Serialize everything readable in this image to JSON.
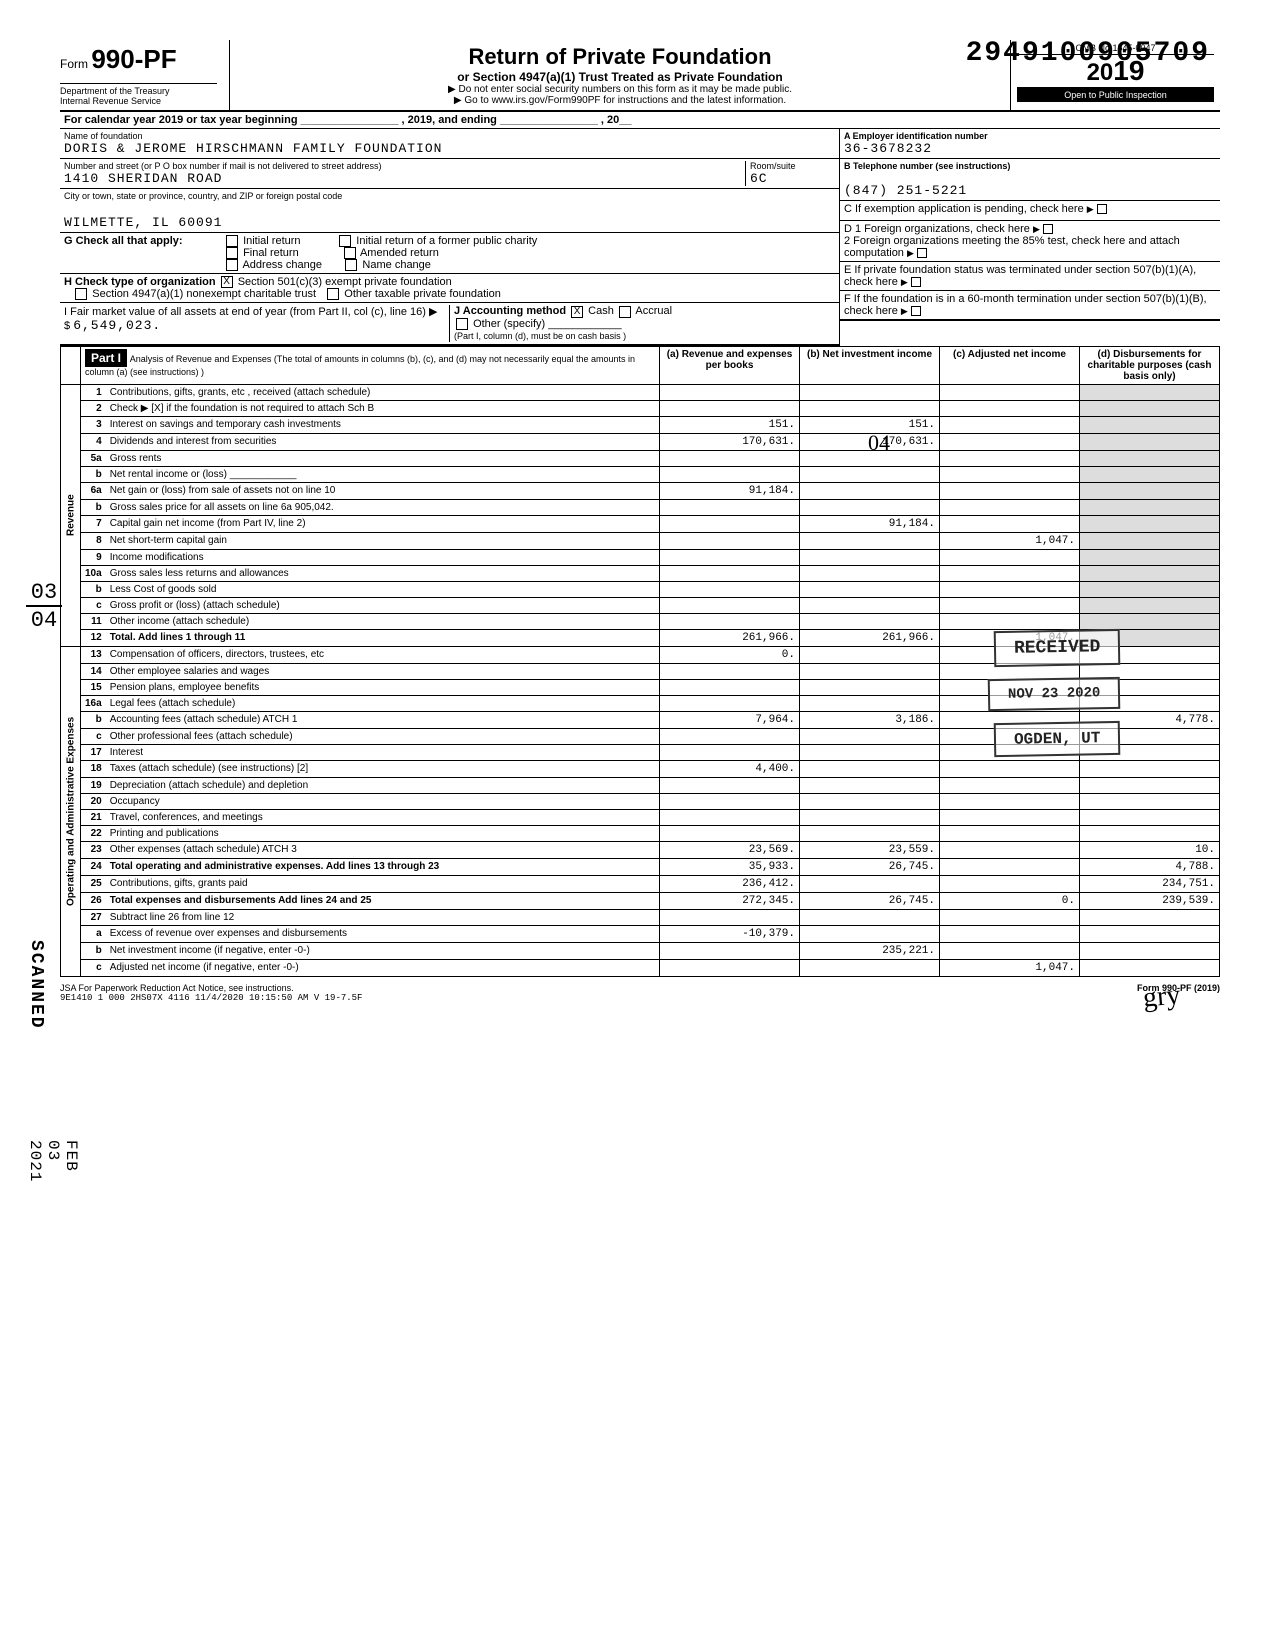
{
  "topnumber": "2949100905709",
  "form": {
    "form_label": "Form",
    "form_no": "990-PF",
    "dept1": "Department of the Treasury",
    "dept2": "Internal Revenue Service"
  },
  "title": {
    "main": "Return of Private Foundation",
    "sub": "or Section 4947(a)(1) Trust Treated as Private Foundation",
    "line1": "▶ Do not enter social security numbers on this form as it may be made public.",
    "line2": "▶ Go to www.irs.gov/Form990PF for instructions and the latest information."
  },
  "yearbox": {
    "omb": "OMB No 1545-0047",
    "year_prefix": "20",
    "year_bold": "19",
    "open": "Open to Public Inspection"
  },
  "calrow": "For calendar year 2019 or tax year beginning ________________ , 2019, and ending ________________ , 20__",
  "foundation": {
    "name_label": "Name of foundation",
    "name": "DORIS & JEROME HIRSCHMANN FAMILY FOUNDATION",
    "addr_label": "Number and street (or P O  box number if mail is not delivered to street address)",
    "addr": "1410 SHERIDAN ROAD",
    "room_label": "Room/suite",
    "room": "6C",
    "city_label": "City or town, state or province, country, and ZIP or foreign postal code",
    "city": "WILMETTE, IL 60091"
  },
  "boxA": {
    "label": "A  Employer identification number",
    "val": "36-3678232"
  },
  "boxB": {
    "label": "B  Telephone number (see instructions)",
    "val": "(847) 251-5221"
  },
  "boxC": "C  If exemption application is pending, check here",
  "boxD1": "D 1 Foreign organizations, check here",
  "boxD2": "2 Foreign organizations meeting the 85% test, check here and attach computation",
  "boxE": "E  If private foundation status was terminated under section 507(b)(1)(A), check here",
  "boxF": "F  If the foundation is in a 60-month termination under section 507(b)(1)(B), check here",
  "G": {
    "label": "G Check all that apply:",
    "opts": [
      "Initial return",
      "Final return",
      "Address change",
      "Initial return of a former public charity",
      "Amended return",
      "Name change"
    ]
  },
  "H": {
    "label": "H Check type of organization",
    "o1": "Section 501(c)(3) exempt private foundation",
    "o2": "Section 4947(a)(1) nonexempt charitable trust",
    "o3": "Other taxable private foundation"
  },
  "I": {
    "label": "I  Fair market value of all assets at end of year (from Part II, col (c), line 16) ▶ $",
    "val": "6,549,023."
  },
  "J": {
    "label": "J Accounting method",
    "cash": "Cash",
    "accrual": "Accrual",
    "other": "Other (specify)",
    "note": "(Part I, column (d), must be on cash basis )"
  },
  "part1": {
    "hdr": "Part I",
    "title": "Analysis of Revenue and Expenses (The total of amounts in columns (b), (c), and (d) may not necessarily equal the amounts in column (a) (see instructions) )",
    "cols": [
      "(a) Revenue and expenses per books",
      "(b) Net investment income",
      "(c) Adjusted net income",
      "(d) Disbursements for charitable purposes (cash basis only)"
    ]
  },
  "side": {
    "rev": "Revenue",
    "opadm": "Operating and Administrative Expenses"
  },
  "rows": [
    {
      "n": "1",
      "d": "Contributions, gifts, grants, etc , received (attach schedule)",
      "a": "",
      "b": "",
      "c": "",
      "x": ""
    },
    {
      "n": "2",
      "d": "Check ▶ [X] if the foundation is not required to attach Sch B",
      "a": "",
      "b": "",
      "c": "",
      "x": ""
    },
    {
      "n": "3",
      "d": "Interest on savings and temporary cash investments",
      "a": "151.",
      "b": "151.",
      "c": "",
      "x": ""
    },
    {
      "n": "4",
      "d": "Dividends and interest from securities",
      "a": "170,631.",
      "b": "170,631.",
      "c": "",
      "x": ""
    },
    {
      "n": "5a",
      "d": "Gross rents",
      "a": "",
      "b": "",
      "c": "",
      "x": ""
    },
    {
      "n": "b",
      "d": "Net rental income or (loss) ____________",
      "a": "",
      "b": "",
      "c": "",
      "x": ""
    },
    {
      "n": "6a",
      "d": "Net gain or (loss) from sale of assets not on line 10",
      "a": "91,184.",
      "b": "",
      "c": "",
      "x": ""
    },
    {
      "n": "b",
      "d": "Gross sales price for all assets on line 6a    905,042.",
      "a": "",
      "b": "",
      "c": "",
      "x": ""
    },
    {
      "n": "7",
      "d": "Capital gain net income (from Part IV, line 2)",
      "a": "",
      "b": "91,184.",
      "c": "",
      "x": ""
    },
    {
      "n": "8",
      "d": "Net short-term capital gain",
      "a": "",
      "b": "",
      "c": "1,047.",
      "x": ""
    },
    {
      "n": "9",
      "d": "Income modifications",
      "a": "",
      "b": "",
      "c": "",
      "x": ""
    },
    {
      "n": "10a",
      "d": "Gross sales less returns and allowances",
      "a": "",
      "b": "",
      "c": "",
      "x": ""
    },
    {
      "n": "b",
      "d": "Less Cost of goods sold",
      "a": "",
      "b": "",
      "c": "",
      "x": ""
    },
    {
      "n": "c",
      "d": "Gross profit or (loss) (attach schedule)",
      "a": "",
      "b": "",
      "c": "",
      "x": ""
    },
    {
      "n": "11",
      "d": "Other income (attach schedule)",
      "a": "",
      "b": "",
      "c": "",
      "x": ""
    },
    {
      "n": "12",
      "d": "Total. Add lines 1 through 11",
      "a": "261,966.",
      "b": "261,966.",
      "c": "1,047.",
      "x": ""
    },
    {
      "n": "13",
      "d": "Compensation of officers, directors, trustees, etc",
      "a": "0.",
      "b": "",
      "c": "",
      "x": ""
    },
    {
      "n": "14",
      "d": "Other employee salaries and wages",
      "a": "",
      "b": "",
      "c": "",
      "x": ""
    },
    {
      "n": "15",
      "d": "Pension plans, employee benefits",
      "a": "",
      "b": "",
      "c": "",
      "x": ""
    },
    {
      "n": "16a",
      "d": "Legal fees (attach schedule)",
      "a": "",
      "b": "",
      "c": "",
      "x": ""
    },
    {
      "n": "b",
      "d": "Accounting fees (attach schedule) ATCH 1",
      "a": "7,964.",
      "b": "3,186.",
      "c": "",
      "x": "4,778."
    },
    {
      "n": "c",
      "d": "Other professional fees (attach schedule)",
      "a": "",
      "b": "",
      "c": "",
      "x": ""
    },
    {
      "n": "17",
      "d": "Interest",
      "a": "",
      "b": "",
      "c": "",
      "x": ""
    },
    {
      "n": "18",
      "d": "Taxes (attach schedule) (see instructions) [2]",
      "a": "4,400.",
      "b": "",
      "c": "",
      "x": ""
    },
    {
      "n": "19",
      "d": "Depreciation (attach schedule) and depletion",
      "a": "",
      "b": "",
      "c": "",
      "x": ""
    },
    {
      "n": "20",
      "d": "Occupancy",
      "a": "",
      "b": "",
      "c": "",
      "x": ""
    },
    {
      "n": "21",
      "d": "Travel, conferences, and meetings",
      "a": "",
      "b": "",
      "c": "",
      "x": ""
    },
    {
      "n": "22",
      "d": "Printing and publications",
      "a": "",
      "b": "",
      "c": "",
      "x": ""
    },
    {
      "n": "23",
      "d": "Other expenses (attach schedule) ATCH 3",
      "a": "23,569.",
      "b": "23,559.",
      "c": "",
      "x": "10."
    },
    {
      "n": "24",
      "d": "Total operating and administrative expenses. Add lines 13 through 23",
      "a": "35,933.",
      "b": "26,745.",
      "c": "",
      "x": "4,788."
    },
    {
      "n": "25",
      "d": "Contributions, gifts, grants paid",
      "a": "236,412.",
      "b": "",
      "c": "",
      "x": "234,751."
    },
    {
      "n": "26",
      "d": "Total expenses and disbursements Add lines 24 and 25",
      "a": "272,345.",
      "b": "26,745.",
      "c": "0.",
      "x": "239,539."
    },
    {
      "n": "27",
      "d": "Subtract line 26 from line 12",
      "a": "",
      "b": "",
      "c": "",
      "x": ""
    },
    {
      "n": "a",
      "d": "Excess of revenue over expenses and disbursements",
      "a": "-10,379.",
      "b": "",
      "c": "",
      "x": ""
    },
    {
      "n": "b",
      "d": "Net investment income (if negative, enter -0-)",
      "a": "",
      "b": "235,221.",
      "c": "",
      "x": ""
    },
    {
      "n": "c",
      "d": "Adjusted net income (if negative, enter -0-)",
      "a": "",
      "b": "",
      "c": "1,047.",
      "x": ""
    }
  ],
  "stamp": {
    "rec": "RECEIVED",
    "date": "NOV 23 2020",
    "ogden": "OGDEN, UT"
  },
  "hand": "04",
  "sideleft": {
    "scanned": "SCANNED",
    "date": "FEB 03 2021",
    "f1": "03",
    "f2": "04"
  },
  "footer": {
    "l": "JSA For Paperwork Reduction Act Notice, see instructions.",
    "m": "9E1410 1 000  2HS07X 4116  11/4/2020   10:15:50 AM V 19-7.5F",
    "r": "Form 990-PF (2019)"
  }
}
